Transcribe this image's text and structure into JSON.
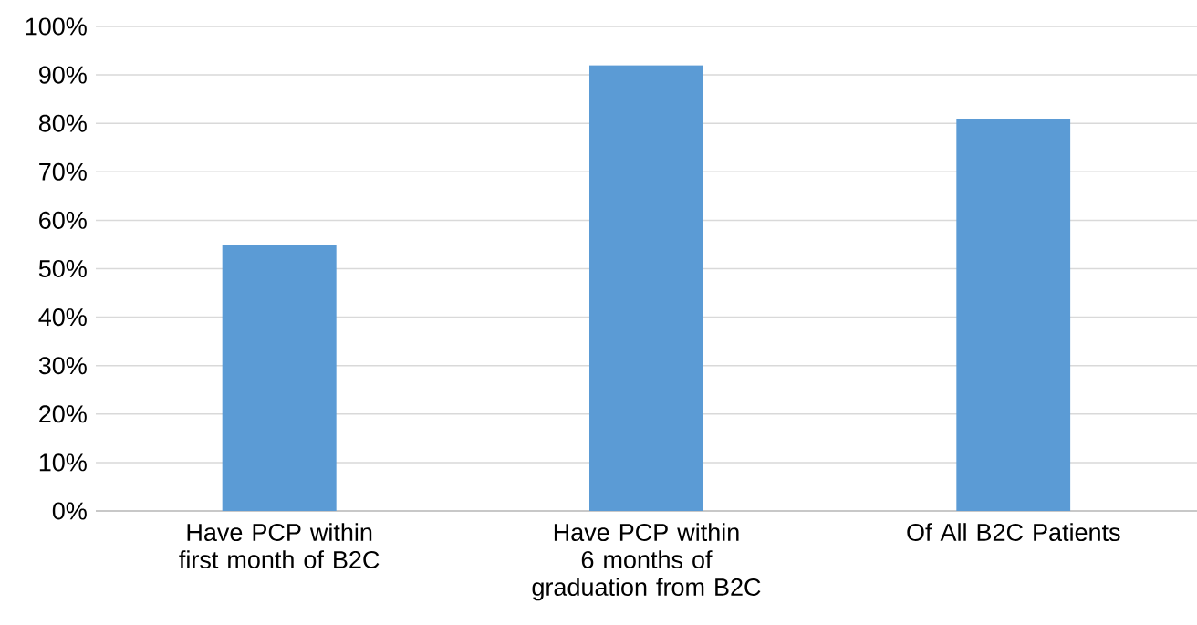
{
  "chart_data": {
    "type": "bar",
    "categories": [
      "Have PCP within first month of B2C",
      "Have PCP within 6 months of graduation from B2C",
      "Of All B2C Patients"
    ],
    "values": [
      55,
      92,
      81
    ],
    "color": "#5b9bd5",
    "ylim": [
      0,
      100
    ],
    "yticks": [
      {
        "value": 0,
        "label": "0%"
      },
      {
        "value": 10,
        "label": "10%"
      },
      {
        "value": 20,
        "label": "20%"
      },
      {
        "value": 30,
        "label": "30%"
      },
      {
        "value": 40,
        "label": "40%"
      },
      {
        "value": 50,
        "label": "50%"
      },
      {
        "value": 60,
        "label": "60%"
      },
      {
        "value": 70,
        "label": "70%"
      },
      {
        "value": 80,
        "label": "80%"
      },
      {
        "value": 90,
        "label": "90%"
      },
      {
        "value": 100,
        "label": "100%"
      }
    ],
    "grid": "y"
  }
}
